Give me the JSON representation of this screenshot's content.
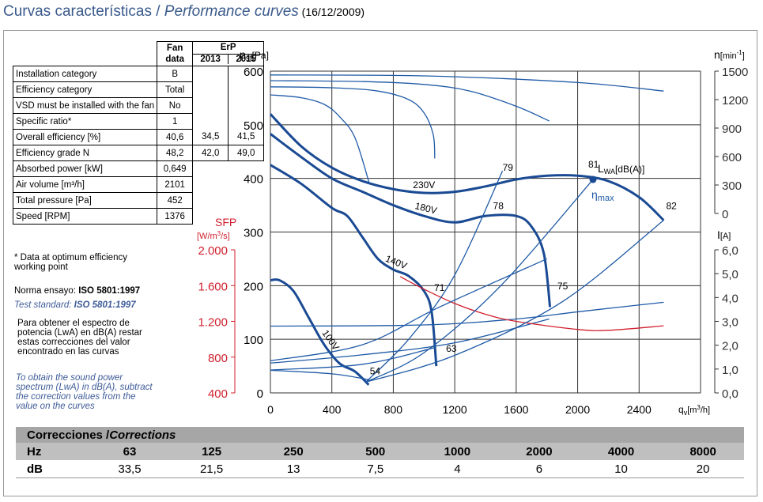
{
  "title": [
    "Curvas características / ",
    "Performance curves",
    " (16/12/2009)"
  ],
  "fan_table": {
    "header": [
      "Fan",
      "data",
      "ErP",
      "2013",
      "2015"
    ],
    "rows": [
      [
        "Installation category",
        "B"
      ],
      [
        "Efficiency category",
        "Total"
      ],
      [
        "VSD must be installed with the fan",
        "No"
      ],
      [
        "Specific ratio*",
        "1"
      ],
      [
        "Overall efficiency [%]",
        "40,6",
        "34,5",
        "41,5"
      ],
      [
        "Efficiency grade N",
        "48,2",
        "42,0",
        "49,0"
      ],
      [
        "Absorbed power [kW]",
        "0,649"
      ],
      [
        "Air volume [m³/h]",
        "2101"
      ],
      [
        "Total pressure [Pa]",
        "452"
      ],
      [
        "Speed [RPM]",
        "1376"
      ]
    ]
  },
  "notes": {
    "footnote": "* Data at optimum efficiency working point",
    "norma": [
      "Norma ensayo: ",
      "ISO 5801:1997"
    ],
    "standard": [
      "Test standard: ",
      "ISO 5801:1997"
    ],
    "es": "Para obtener el espectro de potencia (LwA) en dB(A) restar estas correcciones del valor encontrado en las curvas",
    "en": "To obtain the sound power spectrum (LwA) in dB(A), subtract the correction values from the value on the curves"
  },
  "corrections": {
    "title": [
      "Correcciones / ",
      "Corrections"
    ],
    "hz_label": "Hz",
    "db_label": "dB",
    "hz": [
      "63",
      "125",
      "250",
      "500",
      "1000",
      "2000",
      "4000",
      "8000"
    ],
    "db": [
      "33,5",
      "21,5",
      "13",
      "7,5",
      "4",
      "6",
      "10",
      "20"
    ]
  },
  "chart_data": {
    "type": "line",
    "y_label": [
      "p",
      "sf",
      "[Pa]"
    ],
    "y2_label": [
      "n",
      "[min",
      "-1",
      "]"
    ],
    "y3_label": [
      "I",
      "[A]"
    ],
    "y4_label": [
      "SFP",
      "[W/m",
      "3",
      "/s]"
    ],
    "x_label": [
      "q",
      "v",
      "[m",
      "3",
      "/h]"
    ],
    "xlim": [
      0,
      2800
    ],
    "xticks": [
      0,
      400,
      800,
      1200,
      1600,
      2000,
      2400
    ],
    "ylim": [
      0,
      600
    ],
    "yticks": [
      0,
      100,
      200,
      300,
      400,
      500,
      600
    ],
    "y2lim": [
      0,
      1500
    ],
    "y2ticks": [
      0,
      300,
      600,
      900,
      1200,
      1500
    ],
    "y3lim": [
      0,
      6
    ],
    "y3ticks": [
      {
        "value": 0,
        "label": "0,0"
      },
      {
        "value": 1,
        "label": "1,0"
      },
      {
        "value": 2,
        "label": "2,0"
      },
      {
        "value": 3,
        "label": "3,0"
      },
      {
        "value": 4,
        "label": "4,0"
      },
      {
        "value": 5,
        "label": "5,0"
      },
      {
        "value": 6,
        "label": "6,0"
      }
    ],
    "y4lim": [
      400,
      2000
    ],
    "y4ticks": [
      400,
      800,
      {
        "value": 1200,
        "label": "1.200"
      },
      {
        "value": 1600,
        "label": "1.600"
      },
      {
        "value": 2000,
        "label": "2.000"
      }
    ],
    "y4_color": "#d0202e",
    "grid": true,
    "series": [
      {
        "name": "230V",
        "color": "#1a4a93",
        "x": [
          0,
          200,
          400,
          600,
          800,
          1000,
          1200,
          1400,
          1600,
          1800,
          2000,
          2200,
          2400,
          2560
        ],
        "values": [
          520,
          460,
          420,
          395,
          380,
          373,
          375,
          385,
          398,
          405,
          405,
          395,
          365,
          322
        ]
      },
      {
        "name": "180V",
        "color": "#1a4a93",
        "x": [
          0,
          200,
          400,
          600,
          800,
          1000,
          1200,
          1400,
          1600,
          1700,
          1780,
          1820
        ],
        "values": [
          483,
          440,
          400,
          375,
          350,
          330,
          318,
          330,
          330,
          310,
          260,
          160
        ]
      },
      {
        "name": "140V",
        "color": "#1a4a93",
        "x": [
          0,
          200,
          400,
          500,
          600,
          700,
          800,
          900,
          1000,
          1050,
          1080
        ],
        "values": [
          425,
          390,
          345,
          330,
          290,
          250,
          230,
          218,
          190,
          150,
          50
        ]
      },
      {
        "name": "100V",
        "color": "#1a4a93",
        "x": [
          0,
          60,
          150,
          250,
          350,
          450,
          550,
          640
        ],
        "values": [
          210,
          210,
          190,
          140,
          90,
          55,
          40,
          15
        ]
      },
      {
        "color": "#1f5aa6",
        "axis": "y2",
        "x": [
          0,
          1000,
          2000,
          2560
        ],
        "values": [
          1460,
          1450,
          1380,
          1290
        ]
      },
      {
        "color": "#1f5aa6",
        "axis": "y2",
        "x": [
          0,
          600,
          1000,
          1300,
          1600,
          1815
        ],
        "values": [
          1400,
          1390,
          1360,
          1290,
          1130,
          975
        ]
      },
      {
        "color": "#1f5aa6",
        "axis": "y2",
        "x": [
          0,
          400,
          700,
          900,
          1000,
          1060,
          1070
        ],
        "values": [
          1335,
          1325,
          1290,
          1200,
          1060,
          830,
          580
        ]
      },
      {
        "color": "#1f5aa6",
        "axis": "y2",
        "x": [
          0,
          200,
          350,
          450,
          550,
          645
        ],
        "values": [
          1250,
          1220,
          1150,
          1020,
          800,
          310
        ]
      },
      {
        "color": "#1f5aa6",
        "axis": "y3",
        "x": [
          0,
          1000,
          1600,
          2000,
          2560
        ],
        "values": [
          2.8,
          2.85,
          3.1,
          3.4,
          3.8
        ]
      },
      {
        "color": "#1f5aa6",
        "axis": "y3",
        "x": [
          0,
          600,
          1200,
          1815
        ],
        "values": [
          1.25,
          1.6,
          2.1,
          3.1
        ]
      },
      {
        "color": "#1f5aa6",
        "axis": "y3",
        "x": [
          0,
          600,
          1070
        ],
        "values": [
          0.96,
          1.2,
          1.9
        ]
      },
      {
        "color": "#1f5aa6",
        "axis": "y3",
        "x": [
          0,
          400,
          645
        ],
        "values": [
          0.95,
          0.8,
          0.55
        ]
      },
      {
        "color": "#d0202e",
        "axis": "y4",
        "x": [
          845,
          1000,
          1200,
          1400,
          1600,
          2000,
          2200,
          2560
        ],
        "values": [
          1700,
          1560,
          1400,
          1280,
          1200,
          1110,
          1100,
          1150
        ]
      },
      {
        "color": "#1f5aa6",
        "x": [
          620,
          1000,
          1500,
          2100
        ],
        "values": [
          20,
          75,
          200,
          398
        ]
      },
      {
        "color": "#1f5aa6",
        "x": [
          620,
          1200,
          1900,
          2560
        ],
        "values": [
          20,
          70,
          170,
          322
        ]
      },
      {
        "color": "#1f5aa6",
        "x": [
          620,
          900,
          1200,
          1511
        ],
        "values": [
          20,
          100,
          220,
          414
        ]
      },
      {
        "color": "#1f5aa6",
        "x": [
          0,
          600,
          1100,
          1800
        ],
        "values": [
          60,
          90,
          160,
          250
        ]
      }
    ],
    "peak": {
      "x": 2100,
      "y": 398
    },
    "annotations": [
      {
        "text": "54",
        "x": 647,
        "y": 35
      },
      {
        "text": "63",
        "x": 1143,
        "y": 77
      },
      {
        "text": "71",
        "x": 1066,
        "y": 190
      },
      {
        "text": "75",
        "x": 1868,
        "y": 193
      },
      {
        "text": "78",
        "x": 1449,
        "y": 343
      },
      {
        "text": "79",
        "x": 1511,
        "y": 414
      },
      {
        "text": "81",
        "x": 2069,
        "y": 420
      },
      {
        "text": "82",
        "x": 2576,
        "y": 343
      }
    ],
    "lwa_label": [
      "L",
      "WA",
      "[dB(A)]"
    ],
    "eta_label": [
      "η",
      "max"
    ]
  }
}
